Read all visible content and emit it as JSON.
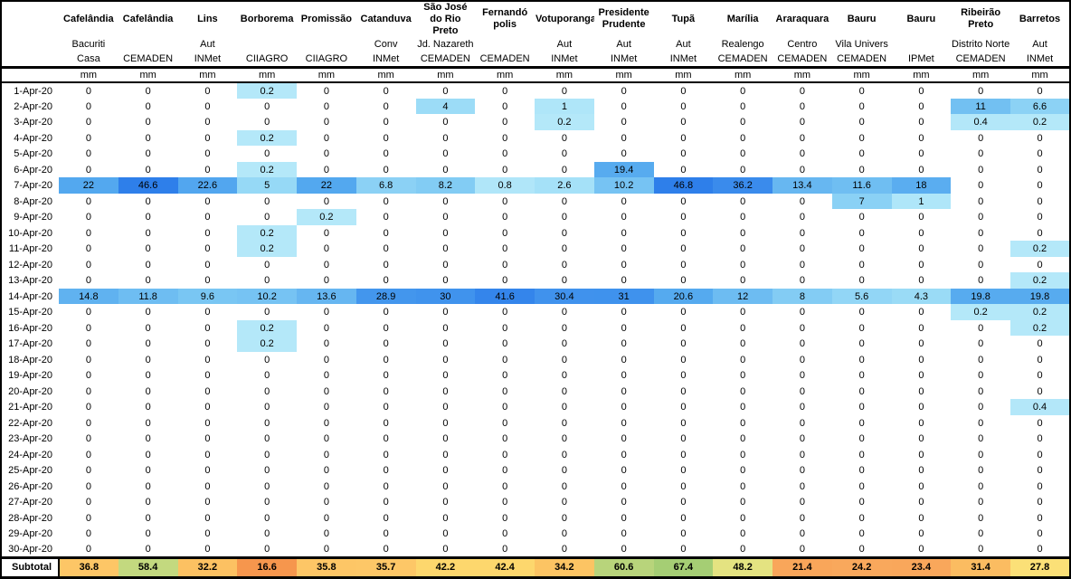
{
  "table": {
    "corner_label": "",
    "unit_label": "mm",
    "columns": [
      {
        "city": "Cafelândia",
        "station_line1": "Bacuriti",
        "station_line2": "Casa"
      },
      {
        "city": "Cafelândia",
        "station_line1": "",
        "station_line2": "CEMADEN"
      },
      {
        "city": "Lins",
        "station_line1": "Aut",
        "station_line2": "INMet"
      },
      {
        "city": "Borborema",
        "station_line1": "",
        "station_line2": "CIIAGRO"
      },
      {
        "city": "Promissão",
        "station_line1": "",
        "station_line2": "CIIAGRO"
      },
      {
        "city": "Catanduva",
        "station_line1": "Conv",
        "station_line2": "INMet"
      },
      {
        "city": "São José do Rio Preto",
        "station_line1": "Jd. Nazareth",
        "station_line2": "CEMADEN"
      },
      {
        "city": "Fernandó polis",
        "station_line1": "",
        "station_line2": "CEMADEN"
      },
      {
        "city": "Votuporanga",
        "station_line1": "Aut",
        "station_line2": "INMet"
      },
      {
        "city": "Presidente Prudente",
        "station_line1": "Aut",
        "station_line2": "INMet"
      },
      {
        "city": "Tupã",
        "station_line1": "Aut",
        "station_line2": "INMet"
      },
      {
        "city": "Marília",
        "station_line1": "Realengo",
        "station_line2": "CEMADEN"
      },
      {
        "city": "Araraquara",
        "station_line1": "Centro",
        "station_line2": "CEMADEN"
      },
      {
        "city": "Bauru",
        "station_line1": "Vila Univers",
        "station_line2": "CEMADEN"
      },
      {
        "city": "Bauru",
        "station_line1": "",
        "station_line2": "IPMet"
      },
      {
        "city": "Ribeirão Preto",
        "station_line1": "Distrito Norte",
        "station_line2": "CEMADEN"
      },
      {
        "city": "Barretos",
        "station_line1": "Aut",
        "station_line2": "INMet"
      }
    ],
    "rows": [
      {
        "date": "1-Apr-20",
        "values": [
          0,
          0,
          0,
          0.2,
          0,
          0,
          0,
          0,
          0,
          0,
          0,
          0,
          0,
          0,
          0,
          0,
          0
        ]
      },
      {
        "date": "2-Apr-20",
        "values": [
          0,
          0,
          0,
          0,
          0,
          0,
          4,
          0,
          1,
          0,
          0,
          0,
          0,
          0,
          0,
          11,
          6.6
        ]
      },
      {
        "date": "3-Apr-20",
        "values": [
          0,
          0,
          0,
          0,
          0,
          0,
          0,
          0,
          0.2,
          0,
          0,
          0,
          0,
          0,
          0,
          0.4,
          0.2
        ]
      },
      {
        "date": "4-Apr-20",
        "values": [
          0,
          0,
          0,
          0.2,
          0,
          0,
          0,
          0,
          0,
          0,
          0,
          0,
          0,
          0,
          0,
          0,
          0
        ]
      },
      {
        "date": "5-Apr-20",
        "values": [
          0,
          0,
          0,
          0,
          0,
          0,
          0,
          0,
          0,
          0,
          0,
          0,
          0,
          0,
          0,
          0,
          0
        ]
      },
      {
        "date": "6-Apr-20",
        "values": [
          0,
          0,
          0,
          0.2,
          0,
          0,
          0,
          0,
          0,
          19.4,
          0,
          0,
          0,
          0,
          0,
          0,
          0
        ]
      },
      {
        "date": "7-Apr-20",
        "values": [
          22,
          46.6,
          22.6,
          5,
          22,
          6.8,
          8.2,
          0.8,
          2.6,
          10.2,
          46.8,
          36.2,
          13.4,
          11.6,
          18,
          0,
          0
        ]
      },
      {
        "date": "8-Apr-20",
        "values": [
          0,
          0,
          0,
          0,
          0,
          0,
          0,
          0,
          0,
          0,
          0,
          0,
          0,
          7,
          1,
          0,
          0
        ]
      },
      {
        "date": "9-Apr-20",
        "values": [
          0,
          0,
          0,
          0,
          0.2,
          0,
          0,
          0,
          0,
          0,
          0,
          0,
          0,
          0,
          0,
          0,
          0
        ]
      },
      {
        "date": "10-Apr-20",
        "values": [
          0,
          0,
          0,
          0.2,
          0,
          0,
          0,
          0,
          0,
          0,
          0,
          0,
          0,
          0,
          0,
          0,
          0
        ]
      },
      {
        "date": "11-Apr-20",
        "values": [
          0,
          0,
          0,
          0.2,
          0,
          0,
          0,
          0,
          0,
          0,
          0,
          0,
          0,
          0,
          0,
          0,
          0.2
        ]
      },
      {
        "date": "12-Apr-20",
        "values": [
          0,
          0,
          0,
          0,
          0,
          0,
          0,
          0,
          0,
          0,
          0,
          0,
          0,
          0,
          0,
          0,
          0
        ]
      },
      {
        "date": "13-Apr-20",
        "values": [
          0,
          0,
          0,
          0,
          0,
          0,
          0,
          0,
          0,
          0,
          0,
          0,
          0,
          0,
          0,
          0,
          0.2
        ]
      },
      {
        "date": "14-Apr-20",
        "values": [
          14.8,
          11.8,
          9.6,
          10.2,
          13.6,
          28.9,
          30,
          41.6,
          30.4,
          31,
          20.6,
          12,
          8,
          5.6,
          4.3,
          19.8,
          19.8
        ]
      },
      {
        "date": "15-Apr-20",
        "values": [
          0,
          0,
          0,
          0,
          0,
          0,
          0,
          0,
          0,
          0,
          0,
          0,
          0,
          0,
          0,
          0.2,
          0.2
        ]
      },
      {
        "date": "16-Apr-20",
        "values": [
          0,
          0,
          0,
          0.2,
          0,
          0,
          0,
          0,
          0,
          0,
          0,
          0,
          0,
          0,
          0,
          0,
          0.2
        ]
      },
      {
        "date": "17-Apr-20",
        "values": [
          0,
          0,
          0,
          0.2,
          0,
          0,
          0,
          0,
          0,
          0,
          0,
          0,
          0,
          0,
          0,
          0,
          0
        ]
      },
      {
        "date": "18-Apr-20",
        "values": [
          0,
          0,
          0,
          0,
          0,
          0,
          0,
          0,
          0,
          0,
          0,
          0,
          0,
          0,
          0,
          0,
          0
        ]
      },
      {
        "date": "19-Apr-20",
        "values": [
          0,
          0,
          0,
          0,
          0,
          0,
          0,
          0,
          0,
          0,
          0,
          0,
          0,
          0,
          0,
          0,
          0
        ]
      },
      {
        "date": "20-Apr-20",
        "values": [
          0,
          0,
          0,
          0,
          0,
          0,
          0,
          0,
          0,
          0,
          0,
          0,
          0,
          0,
          0,
          0,
          0
        ]
      },
      {
        "date": "21-Apr-20",
        "values": [
          0,
          0,
          0,
          0,
          0,
          0,
          0,
          0,
          0,
          0,
          0,
          0,
          0,
          0,
          0,
          0,
          0.4
        ]
      },
      {
        "date": "22-Apr-20",
        "values": [
          0,
          0,
          0,
          0,
          0,
          0,
          0,
          0,
          0,
          0,
          0,
          0,
          0,
          0,
          0,
          0,
          0
        ]
      },
      {
        "date": "23-Apr-20",
        "values": [
          0,
          0,
          0,
          0,
          0,
          0,
          0,
          0,
          0,
          0,
          0,
          0,
          0,
          0,
          0,
          0,
          0
        ]
      },
      {
        "date": "24-Apr-20",
        "values": [
          0,
          0,
          0,
          0,
          0,
          0,
          0,
          0,
          0,
          0,
          0,
          0,
          0,
          0,
          0,
          0,
          0
        ]
      },
      {
        "date": "25-Apr-20",
        "values": [
          0,
          0,
          0,
          0,
          0,
          0,
          0,
          0,
          0,
          0,
          0,
          0,
          0,
          0,
          0,
          0,
          0
        ]
      },
      {
        "date": "26-Apr-20",
        "values": [
          0,
          0,
          0,
          0,
          0,
          0,
          0,
          0,
          0,
          0,
          0,
          0,
          0,
          0,
          0,
          0,
          0
        ]
      },
      {
        "date": "27-Apr-20",
        "values": [
          0,
          0,
          0,
          0,
          0,
          0,
          0,
          0,
          0,
          0,
          0,
          0,
          0,
          0,
          0,
          0,
          0
        ]
      },
      {
        "date": "28-Apr-20",
        "values": [
          0,
          0,
          0,
          0,
          0,
          0,
          0,
          0,
          0,
          0,
          0,
          0,
          0,
          0,
          0,
          0,
          0
        ]
      },
      {
        "date": "29-Apr-20",
        "values": [
          0,
          0,
          0,
          0,
          0,
          0,
          0,
          0,
          0,
          0,
          0,
          0,
          0,
          0,
          0,
          0,
          0
        ]
      },
      {
        "date": "30-Apr-20",
        "values": [
          0,
          0,
          0,
          0,
          0,
          0,
          0,
          0,
          0,
          0,
          0,
          0,
          0,
          0,
          0,
          0,
          0
        ]
      }
    ],
    "subtotal": {
      "label": "Subtotal",
      "values": [
        36.8,
        58.4,
        32.2,
        16.6,
        35.8,
        35.7,
        42.2,
        42.4,
        34.2,
        60.6,
        67.4,
        48.2,
        21.4,
        24.2,
        23.4,
        31.4,
        27.8
      ],
      "colors": [
        "#FDC666",
        "#C3D97F",
        "#FCC162",
        "#F6964D",
        "#FDC666",
        "#FDC767",
        "#FDD76D",
        "#FDD76D",
        "#FCC463",
        "#B8D47B",
        "#A5CE74",
        "#E4E381",
        "#F9A65A",
        "#F9A85C",
        "#F9A75B",
        "#FBBC61",
        "#FBE077"
      ]
    },
    "heat_scale": {
      "zero_color": "#FFFFFF",
      "stops": [
        [
          0.2,
          "#B4E8F9"
        ],
        [
          5,
          "#96D9F6"
        ],
        [
          10,
          "#77C4F3"
        ],
        [
          15,
          "#5FB1F0"
        ],
        [
          22,
          "#53A8EF"
        ],
        [
          30,
          "#4093ED"
        ],
        [
          37,
          "#398AEC"
        ],
        [
          47,
          "#2E7FEA"
        ]
      ]
    }
  }
}
